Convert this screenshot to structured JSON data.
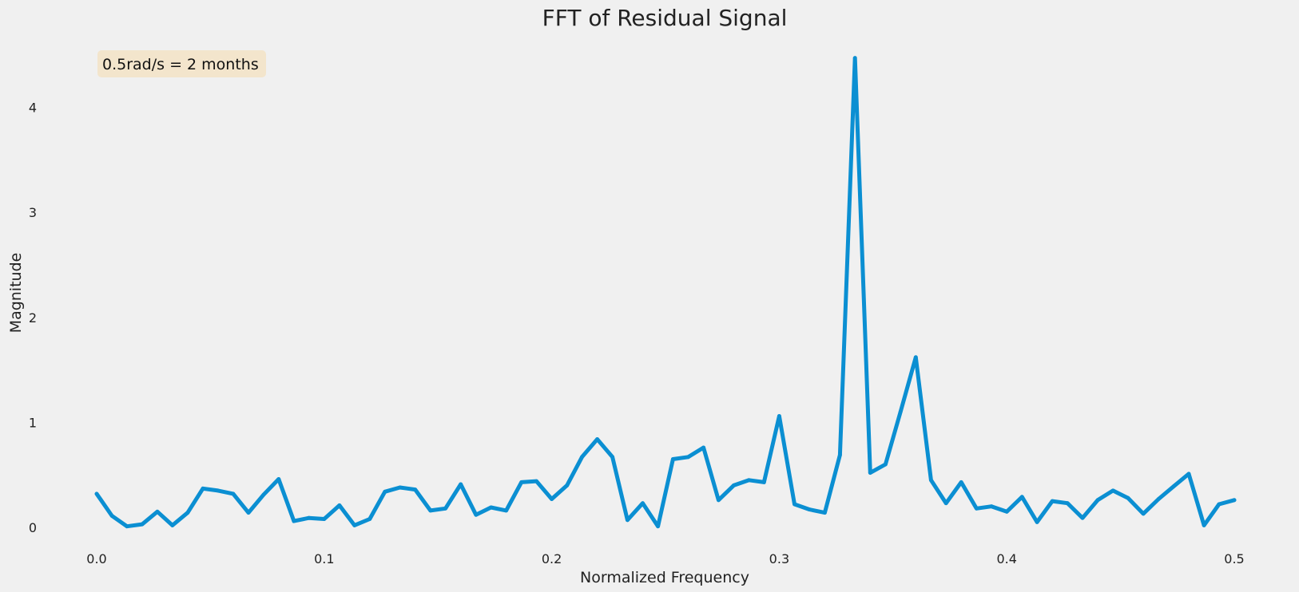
{
  "chart_data": {
    "type": "line",
    "title": "FFT of Residual Signal",
    "xlabel": "Normalized Frequency",
    "ylabel": "Magnitude",
    "xlim": [
      0.0,
      0.5
    ],
    "ylim": [
      0,
      4.5
    ],
    "xticks": [
      "0.0",
      "0.1",
      "0.2",
      "0.3",
      "0.4",
      "0.5"
    ],
    "yticks": [
      "0",
      "1",
      "2",
      "3",
      "4"
    ],
    "grid": false,
    "annotation": "0.5rad/s = 2 months",
    "colors": {
      "line": "#0b8fd2",
      "annotation_bg": "#f3e5cc",
      "background": "#f0f0f0"
    },
    "series": [
      {
        "x": [
          0.0,
          0.0067,
          0.0133,
          0.02,
          0.0267,
          0.0333,
          0.04,
          0.0467,
          0.0533,
          0.06,
          0.0667,
          0.0733,
          0.08,
          0.0867,
          0.0933,
          0.1,
          0.1067,
          0.1133,
          0.12,
          0.1267,
          0.1333,
          0.14,
          0.1467,
          0.1533,
          0.16,
          0.1667,
          0.1733,
          0.18,
          0.1867,
          0.1933,
          0.2,
          0.2067,
          0.2133,
          0.22,
          0.2267,
          0.2333,
          0.24,
          0.2467,
          0.2533,
          0.26,
          0.2667,
          0.2733,
          0.28,
          0.2867,
          0.2933,
          0.3,
          0.3067,
          0.3133,
          0.32,
          0.3267,
          0.3333,
          0.34,
          0.3467,
          0.3533,
          0.36,
          0.3667,
          0.3733,
          0.38,
          0.3867,
          0.3933,
          0.4,
          0.4067,
          0.4133,
          0.42,
          0.4267,
          0.4333,
          0.44,
          0.4467,
          0.4533,
          0.46,
          0.4667,
          0.4733,
          0.48,
          0.4867,
          0.4933,
          0.5
        ],
        "values": [
          0.32,
          0.11,
          0.01,
          0.03,
          0.15,
          0.02,
          0.14,
          0.37,
          0.35,
          0.32,
          0.14,
          0.31,
          0.46,
          0.06,
          0.09,
          0.08,
          0.21,
          0.02,
          0.08,
          0.34,
          0.38,
          0.36,
          0.16,
          0.18,
          0.41,
          0.12,
          0.19,
          0.16,
          0.43,
          0.44,
          0.27,
          0.4,
          0.67,
          0.84,
          0.67,
          0.07,
          0.23,
          0.01,
          0.65,
          0.67,
          0.76,
          0.26,
          0.4,
          0.45,
          0.43,
          1.06,
          0.22,
          0.17,
          0.14,
          0.69,
          4.47,
          0.52,
          0.6,
          1.1,
          1.62,
          0.45,
          0.23,
          0.43,
          0.18,
          0.2,
          0.15,
          0.29,
          0.05,
          0.25,
          0.23,
          0.09,
          0.26,
          0.35,
          0.28,
          0.13,
          0.27,
          0.39,
          0.51,
          0.02,
          0.22,
          0.26
        ]
      }
    ]
  }
}
